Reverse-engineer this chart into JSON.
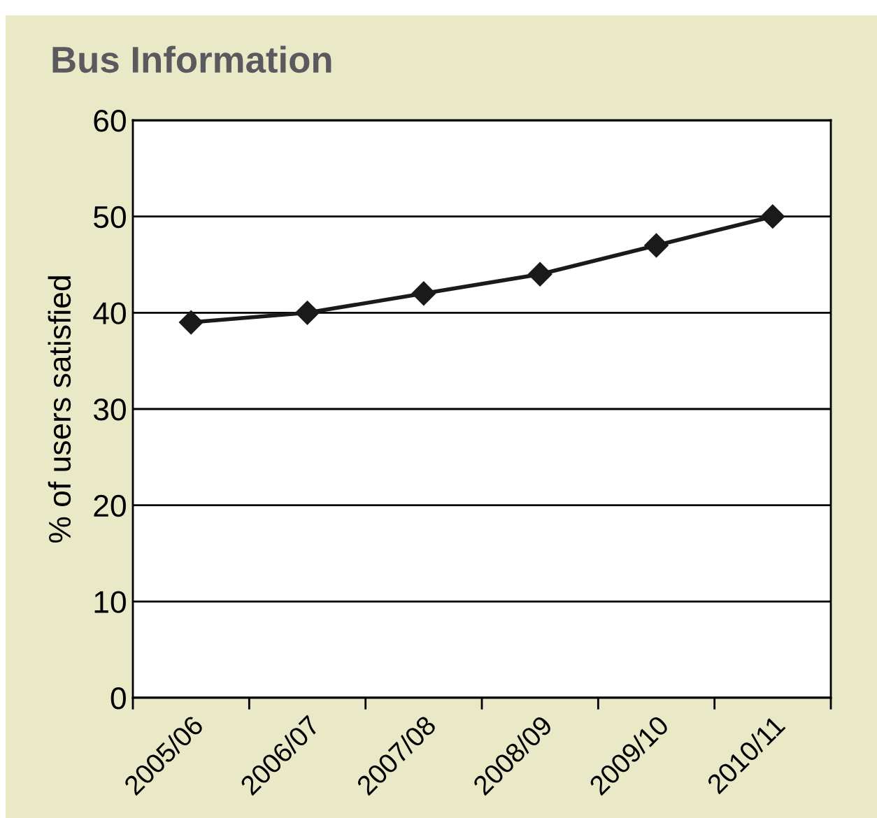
{
  "chart_data": {
    "type": "line",
    "title": "Bus Information",
    "ylabel": "% of users satisfied",
    "categories": [
      "2005/06",
      "2006/07",
      "2007/08",
      "2008/09",
      "2009/10",
      "2010/11"
    ],
    "series": [
      {
        "color": "#1a1a1a",
        "values": [
          39,
          40,
          42,
          44,
          47,
          50
        ]
      }
    ],
    "ylim": [
      0,
      60
    ],
    "yticks": [
      0,
      10,
      20,
      30,
      40,
      50,
      60
    ],
    "grid": "y",
    "marker": "diamond",
    "line_style": "solid"
  }
}
